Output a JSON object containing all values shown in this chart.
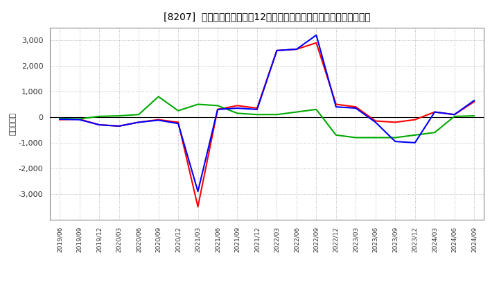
{
  "title": "[8207]  キャッシュフローの12か月移動合計の対前年同期増減額の推移",
  "ylabel": "（百万円）",
  "background_color": "#ffffff",
  "plot_bg_color": "#ffffff",
  "grid_color": "#aaaaaa",
  "x_labels": [
    "2019/06",
    "2019/09",
    "2019/12",
    "2020/03",
    "2020/06",
    "2020/09",
    "2020/12",
    "2021/03",
    "2021/06",
    "2021/09",
    "2021/12",
    "2022/03",
    "2022/06",
    "2022/09",
    "2022/12",
    "2023/03",
    "2023/06",
    "2023/09",
    "2023/12",
    "2024/03",
    "2024/06",
    "2024/09"
  ],
  "operating_cf": [
    -100,
    -80,
    -300,
    -350,
    -200,
    -100,
    -200,
    -3500,
    300,
    450,
    350,
    2600,
    2650,
    2900,
    500,
    400,
    -150,
    -200,
    -100,
    200,
    100,
    600
  ],
  "investing_cf": [
    -50,
    -70,
    30,
    50,
    100,
    800,
    250,
    500,
    450,
    150,
    100,
    100,
    200,
    300,
    -700,
    -800,
    -800,
    -800,
    -700,
    -600,
    30,
    50
  ],
  "free_cf": [
    -80,
    -100,
    -300,
    -350,
    -200,
    -120,
    -250,
    -2900,
    300,
    350,
    300,
    2600,
    2650,
    3200,
    400,
    350,
    -200,
    -950,
    -1000,
    200,
    100,
    650
  ],
  "ylim": [
    -4000,
    3500
  ],
  "yticks": [
    -3000,
    -2000,
    -1000,
    0,
    1000,
    2000,
    3000
  ],
  "line_colors": {
    "operating": "#ff0000",
    "investing": "#00aa00",
    "free": "#0000ff"
  }
}
